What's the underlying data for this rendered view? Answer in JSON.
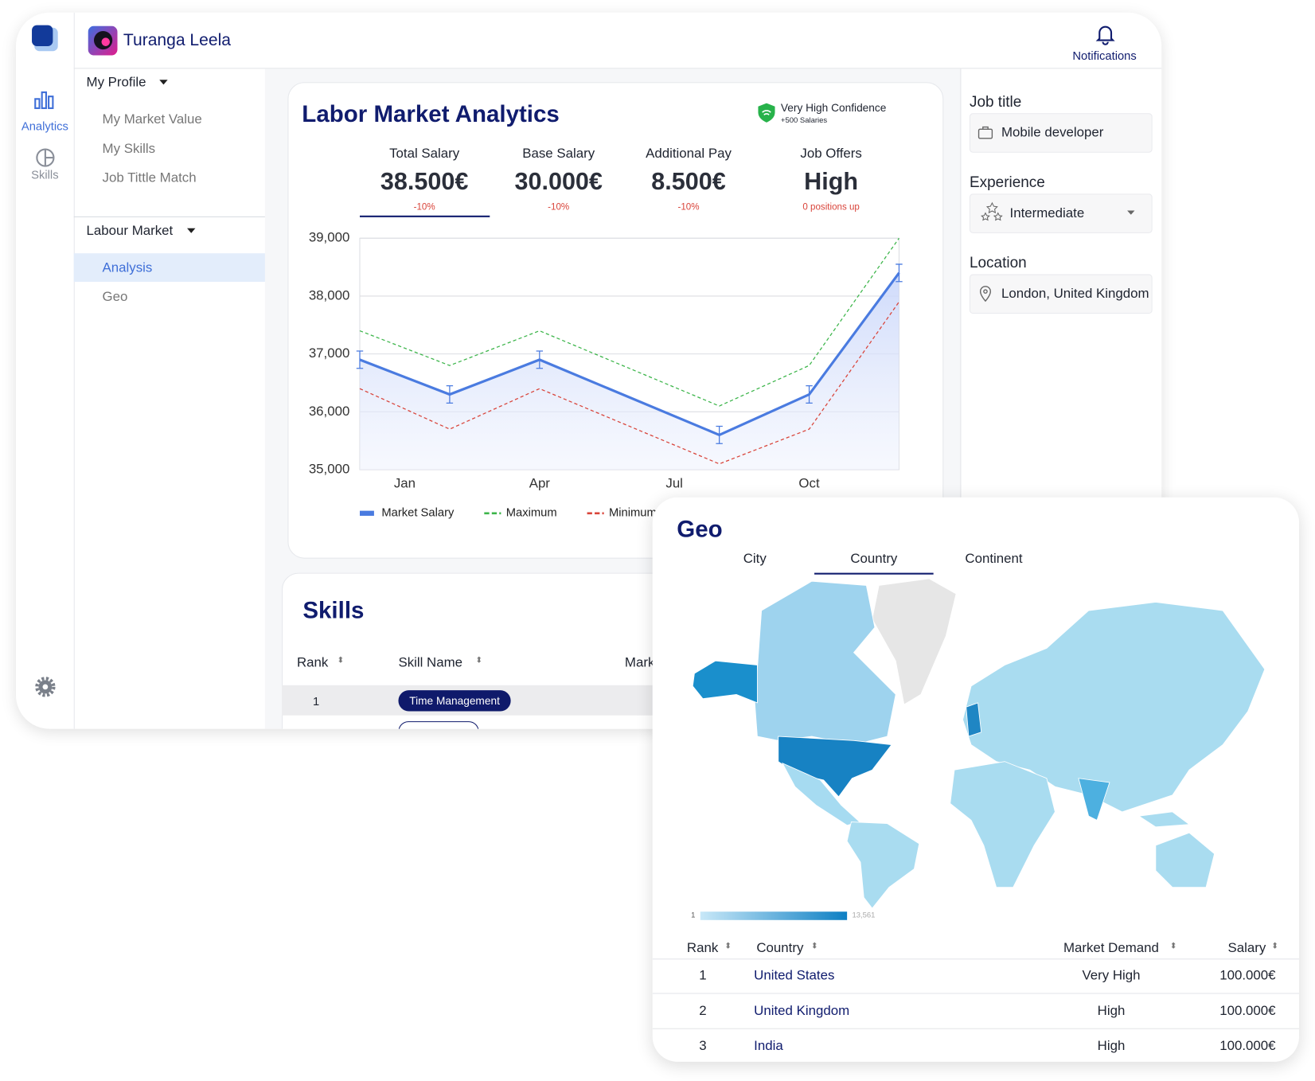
{
  "header": {
    "user_name": "Turanga Leela",
    "notifications": "Notifications"
  },
  "sidebar": {
    "nav": [
      "Analytics",
      "Skills"
    ]
  },
  "menu": {
    "sections": [
      {
        "title": "My Profile",
        "items": [
          "My Market Value",
          "My Skills",
          "Job Tittle Match"
        ]
      },
      {
        "title": "Labour Market",
        "items": [
          "Analysis",
          "Geo"
        ]
      }
    ]
  },
  "analytics": {
    "title": "Labor Market Analytics",
    "confidence": "Very High Confidence",
    "confidence_note": "+500 Salaries",
    "kpis": [
      {
        "label": "Total Salary",
        "value": "38.500€",
        "change": "-10%"
      },
      {
        "label": "Base Salary",
        "value": "30.000€",
        "change": "-10%"
      },
      {
        "label": "Additional Pay",
        "value": "8.500€",
        "change": "-10%"
      },
      {
        "label": "Job Offers",
        "value": "High",
        "change": "0 positions up"
      }
    ]
  },
  "chart_data": {
    "type": "line",
    "x": [
      0,
      2,
      4,
      8,
      10,
      12
    ],
    "xlim": [
      0,
      12
    ],
    "xticks": [
      {
        "value": 1,
        "label": "Jan"
      },
      {
        "value": 4,
        "label": "Apr"
      },
      {
        "value": 7,
        "label": "Jul"
      },
      {
        "value": 10,
        "label": "Oct"
      }
    ],
    "ylim": [
      35000,
      39000
    ],
    "yticks": [
      {
        "value": 35000,
        "label": "35,000"
      },
      {
        "value": 36000,
        "label": "36,000"
      },
      {
        "value": 37000,
        "label": "37,000"
      },
      {
        "value": 38000,
        "label": "38,000"
      },
      {
        "value": 39000,
        "label": "39,000"
      }
    ],
    "grid": true,
    "legend": "bottom",
    "series": [
      {
        "name": "Market Salary",
        "color": "#4a7be0",
        "dashed": false,
        "values": [
          36900,
          36300,
          36900,
          35600,
          36300,
          38400
        ],
        "errors": [
          150,
          150,
          150,
          150,
          150,
          150
        ]
      },
      {
        "name": "Maximum",
        "color": "#3cb54a",
        "dashed": true,
        "values": [
          37400,
          36800,
          37400,
          36100,
          36800,
          39000
        ]
      },
      {
        "name": "Minimum",
        "color": "#d9443a",
        "dashed": true,
        "values": [
          36400,
          35700,
          36400,
          35100,
          35700,
          37900
        ]
      }
    ]
  },
  "skills": {
    "title": "Skills",
    "columns": [
      "Rank",
      "Skill Name",
      "Mark"
    ],
    "rows": [
      [
        "1",
        "Time Management"
      ]
    ]
  },
  "filters": {
    "job_title": {
      "label": "Job title",
      "value": "Mobile developer"
    },
    "experience": {
      "label": "Experience",
      "value": "Intermediate"
    },
    "location": {
      "label": "Location",
      "value": "London, United Kingdom"
    }
  },
  "geo": {
    "title": "Geo",
    "tabs": [
      "City",
      "Country",
      "Continent"
    ],
    "active_tab": "Country",
    "scale_min": "1",
    "scale_max": "13,561",
    "columns": [
      "Rank",
      "Country",
      "Market Demand",
      "Salary"
    ],
    "rows": [
      [
        "1",
        "United States",
        "Very High",
        "100.000€"
      ],
      [
        "2",
        "United Kingdom",
        "High",
        "100.000€"
      ],
      [
        "3",
        "India",
        "High",
        "100.000€"
      ]
    ]
  }
}
